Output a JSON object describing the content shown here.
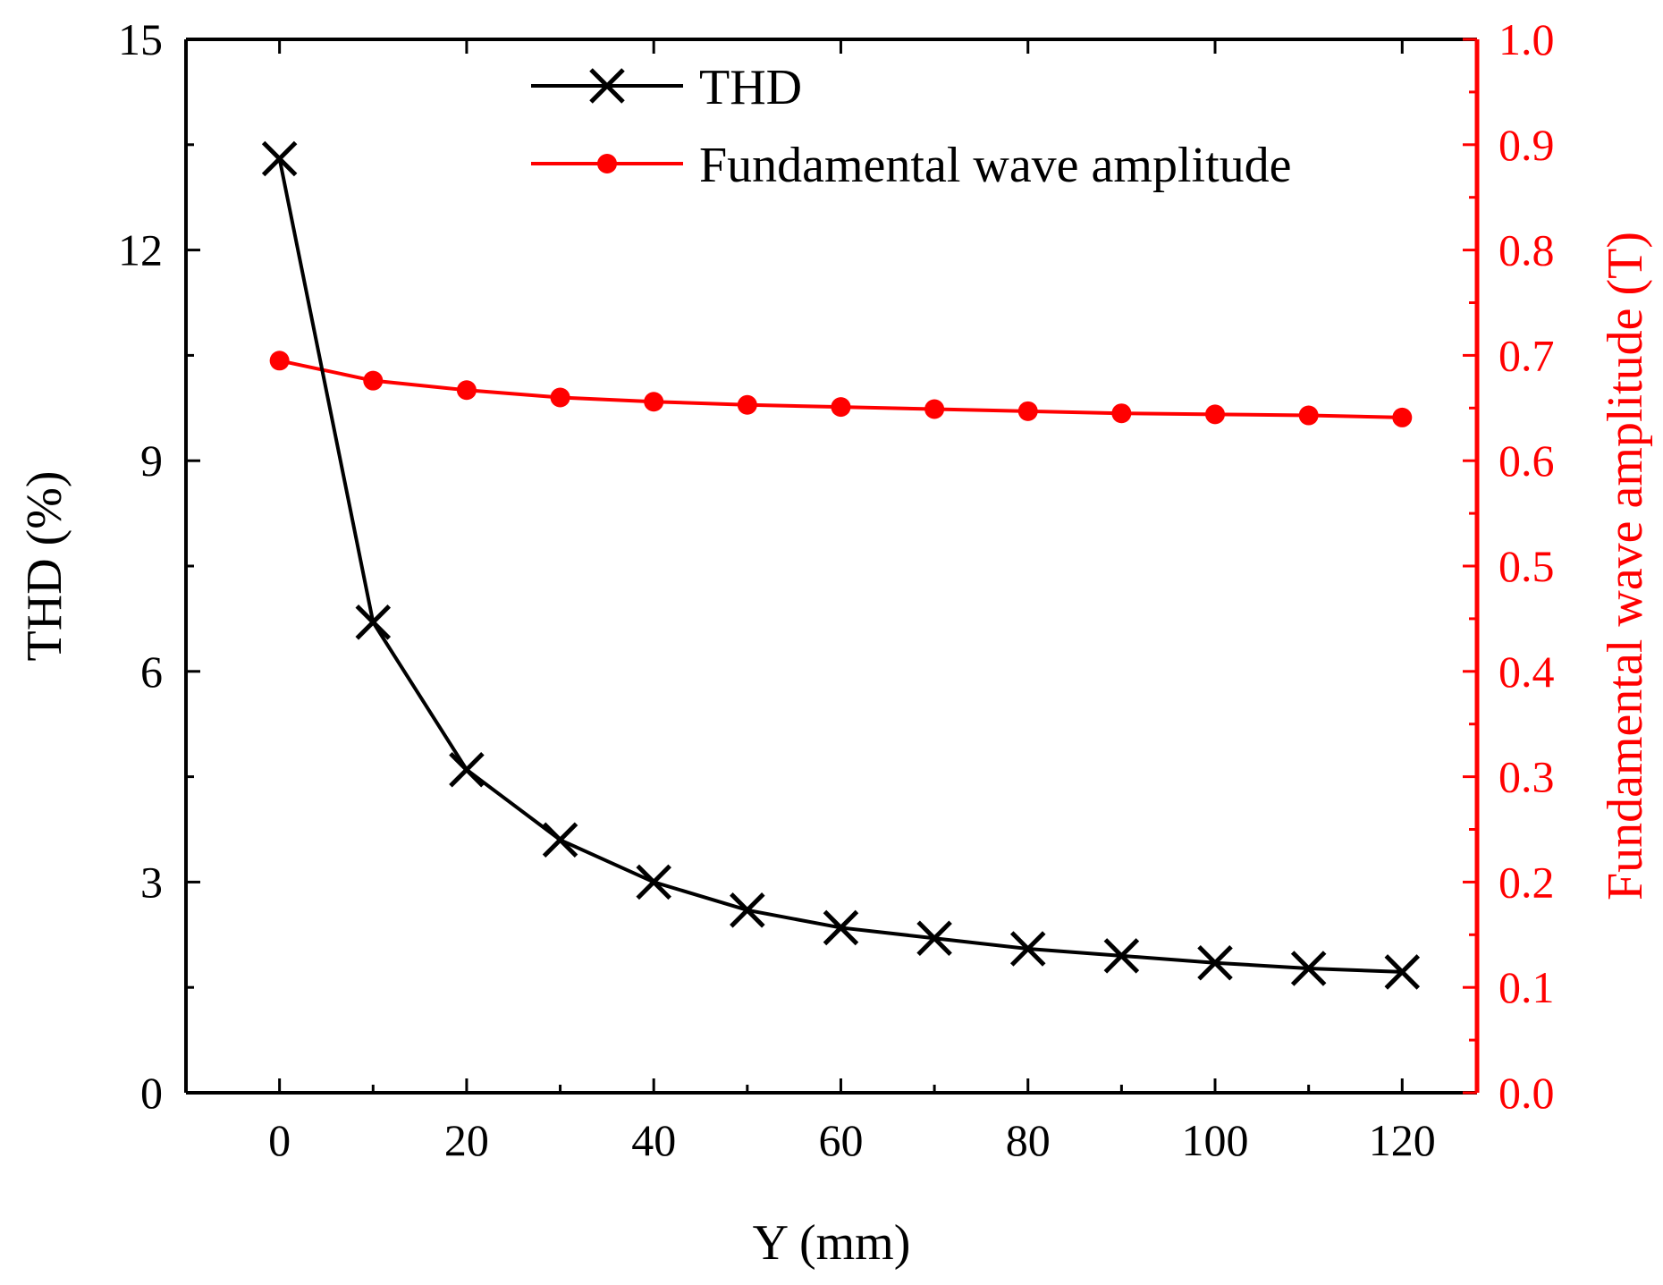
{
  "chart_data": {
    "type": "line",
    "x": [
      0,
      10,
      20,
      30,
      40,
      50,
      60,
      70,
      80,
      90,
      100,
      110,
      120
    ],
    "xlabel": "Y (mm)",
    "xlim": [
      -10,
      128
    ],
    "xticks": [
      0,
      20,
      40,
      60,
      80,
      100,
      120
    ],
    "xtick_labels": [
      "0",
      "20",
      "40",
      "60",
      "80",
      "100",
      "120"
    ],
    "ylabel": "THD (%)",
    "ylim": [
      0,
      15
    ],
    "yticks": [
      0,
      3,
      6,
      9,
      12,
      15
    ],
    "ytick_labels": [
      "0",
      "3",
      "6",
      "9",
      "12",
      "15"
    ],
    "y2label": "Fundamental wave amplitude (T)",
    "y2lim": [
      0,
      1
    ],
    "y2ticks": [
      0,
      0.1,
      0.2,
      0.3,
      0.4,
      0.5,
      0.6,
      0.7,
      0.8,
      0.9,
      1.0
    ],
    "y2tick_labels": [
      "0.0",
      "0.1",
      "0.2",
      "0.3",
      "0.4",
      "0.5",
      "0.6",
      "0.7",
      "0.8",
      "0.9",
      "1.0"
    ],
    "legend_position": "top-right",
    "grid": false,
    "series": [
      {
        "name": "THD",
        "axis": "left",
        "color": "#000000",
        "marker": "x",
        "values": [
          13.3,
          6.7,
          4.6,
          3.6,
          3.0,
          2.6,
          2.35,
          2.2,
          2.05,
          1.95,
          1.85,
          1.77,
          1.72
        ]
      },
      {
        "name": "Fundamental wave amplitude",
        "axis": "right",
        "color": "#ff0000",
        "marker": "circle",
        "values": [
          0.695,
          0.676,
          0.667,
          0.66,
          0.656,
          0.653,
          0.651,
          0.649,
          0.647,
          0.645,
          0.644,
          0.643,
          0.641
        ]
      }
    ]
  }
}
